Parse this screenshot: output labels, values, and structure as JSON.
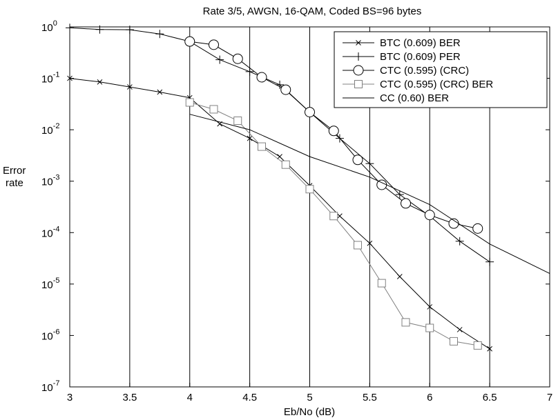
{
  "chart_data": {
    "type": "line",
    "title": "Rate 3/5, AWGN, 16-QAM, Coded BS=96 bytes",
    "xlabel": "Eb/No (dB)",
    "ylabel_line1": "Error",
    "ylabel_line2": "rate",
    "xlim": [
      3,
      7
    ],
    "ylim_exponent": [
      -7,
      0
    ],
    "y_scale": "log",
    "grid": "vertical lines at x ticks",
    "legend_position": "top-right",
    "x_ticks": [
      "3",
      "3.5",
      "4",
      "4.5",
      "5",
      "5.5",
      "6",
      "6.5",
      "7"
    ],
    "y_ticks": [
      {
        "base": "10",
        "exp": "0"
      },
      {
        "base": "10",
        "exp": "-1"
      },
      {
        "base": "10",
        "exp": "-2"
      },
      {
        "base": "10",
        "exp": "-3"
      },
      {
        "base": "10",
        "exp": "-4"
      },
      {
        "base": "10",
        "exp": "-5"
      },
      {
        "base": "10",
        "exp": "-6"
      },
      {
        "base": "10",
        "exp": "-7"
      }
    ],
    "series": [
      {
        "name": "BTC (0.609) BER",
        "marker": "x",
        "color": "#000000",
        "x": [
          3.0,
          3.25,
          3.5,
          3.75,
          4.0,
          4.25,
          4.5,
          4.75,
          5.0,
          5.25,
          5.5,
          5.75,
          6.0,
          6.25,
          6.5
        ],
        "y": [
          0.1,
          0.085,
          0.068,
          0.054,
          0.042,
          0.013,
          0.0068,
          0.003,
          0.00082,
          0.00021,
          6.2e-05,
          1.4e-05,
          3.6e-06,
          1.3e-06,
          5.5e-07
        ]
      },
      {
        "name": "BTC (0.609) PER",
        "marker": "+",
        "color": "#000000",
        "x": [
          3.0,
          3.25,
          3.5,
          3.75,
          4.0,
          4.25,
          4.5,
          4.75,
          5.0,
          5.25,
          5.5,
          5.75,
          6.0,
          6.25,
          6.5
        ],
        "y": [
          0.96,
          0.89,
          0.88,
          0.73,
          0.52,
          0.23,
          0.135,
          0.075,
          0.022,
          0.0068,
          0.0022,
          0.00055,
          0.00021,
          6.8e-05,
          2.7e-05
        ]
      },
      {
        "name": "CTC (0.595) (CRC)",
        "marker": "circle",
        "color": "#000000",
        "x": [
          4.0,
          4.2,
          4.4,
          4.6,
          4.8,
          5.0,
          5.2,
          5.4,
          5.6,
          5.8,
          6.0,
          6.2,
          6.4
        ],
        "y": [
          0.52,
          0.45,
          0.24,
          0.105,
          0.06,
          0.022,
          0.0095,
          0.0026,
          0.00085,
          0.00037,
          0.00022,
          0.00015,
          0.00012
        ]
      },
      {
        "name": "CTC (0.595) (CRC) BER",
        "marker": "square",
        "color": "#808080",
        "x": [
          4.0,
          4.2,
          4.4,
          4.6,
          4.8,
          5.0,
          5.2,
          5.4,
          5.6,
          5.8,
          6.0,
          6.2,
          6.4
        ],
        "y": [
          0.034,
          0.025,
          0.015,
          0.0047,
          0.0021,
          0.0007,
          0.00021,
          5.7e-05,
          1.04e-05,
          1.8e-06,
          1.4e-06,
          7.7e-07,
          6.4e-07
        ]
      },
      {
        "name": "CC (0.60) BER",
        "marker": "none",
        "color": "#000000",
        "x": [
          4.0,
          4.5,
          5.0,
          5.5,
          6.0,
          6.5,
          7.0
        ],
        "y": [
          0.02,
          0.01,
          0.003,
          0.0012,
          0.00035,
          6e-05,
          1.6e-05
        ]
      }
    ]
  }
}
